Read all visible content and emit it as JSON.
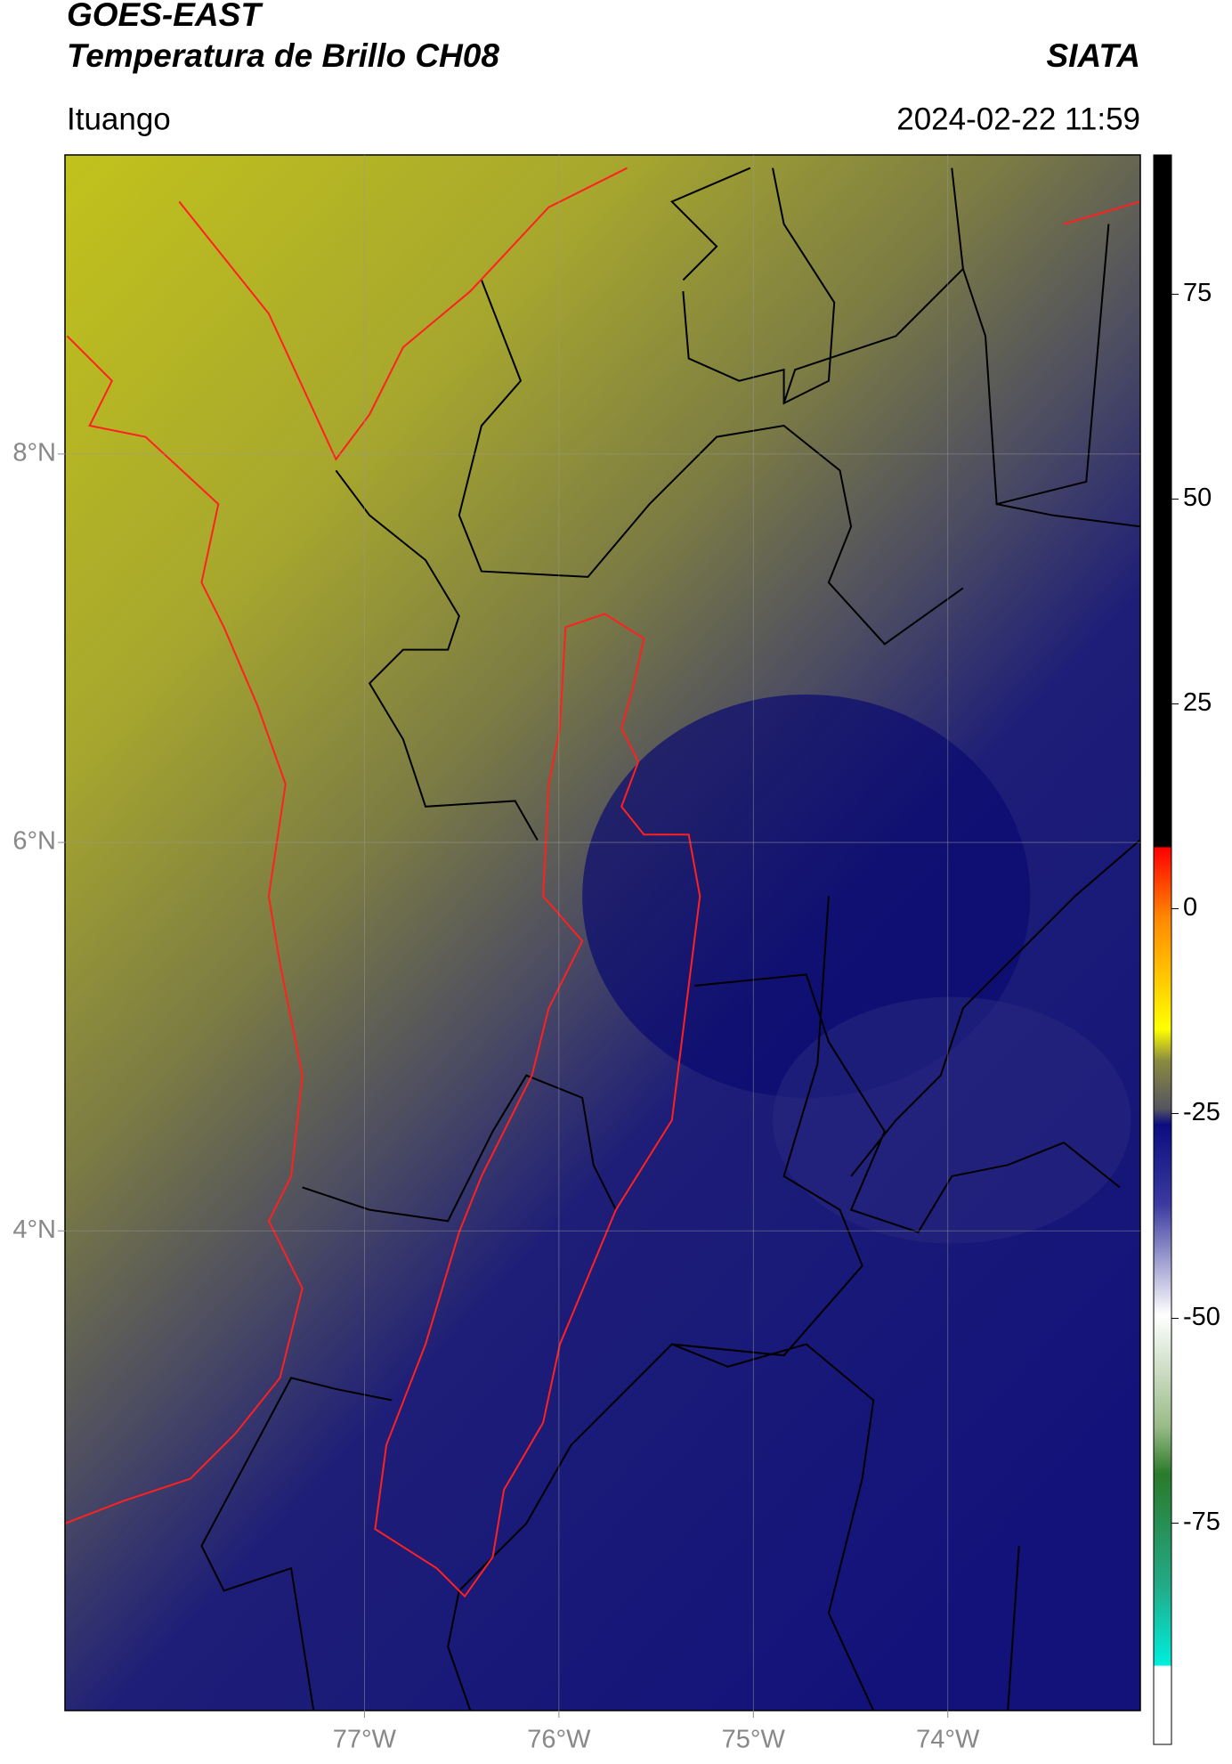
{
  "header": {
    "title": "GOES-EAST",
    "subtitle": "Temperatura de Brillo CH08",
    "source": "SIATA",
    "region": "Ituango",
    "datetime": "2024-02-22 11:59"
  },
  "map": {
    "xlim": [
      -78.54,
      -73.01
    ],
    "ylim": [
      1.53,
      9.54
    ],
    "xticks": [
      {
        "value": -77,
        "label": "77°W"
      },
      {
        "value": -76,
        "label": "76°W"
      },
      {
        "value": -75,
        "label": "75°W"
      },
      {
        "value": -74,
        "label": "74°W"
      }
    ],
    "yticks": [
      {
        "value": 4,
        "label": "4°N"
      },
      {
        "value": 6,
        "label": "6°N"
      },
      {
        "value": 8,
        "label": "8°N"
      }
    ],
    "grid": true
  },
  "colorbar": {
    "clim": [
      -102,
      92
    ],
    "ticks": [
      -75,
      -50,
      -25,
      0,
      25,
      50,
      75
    ]
  }
}
